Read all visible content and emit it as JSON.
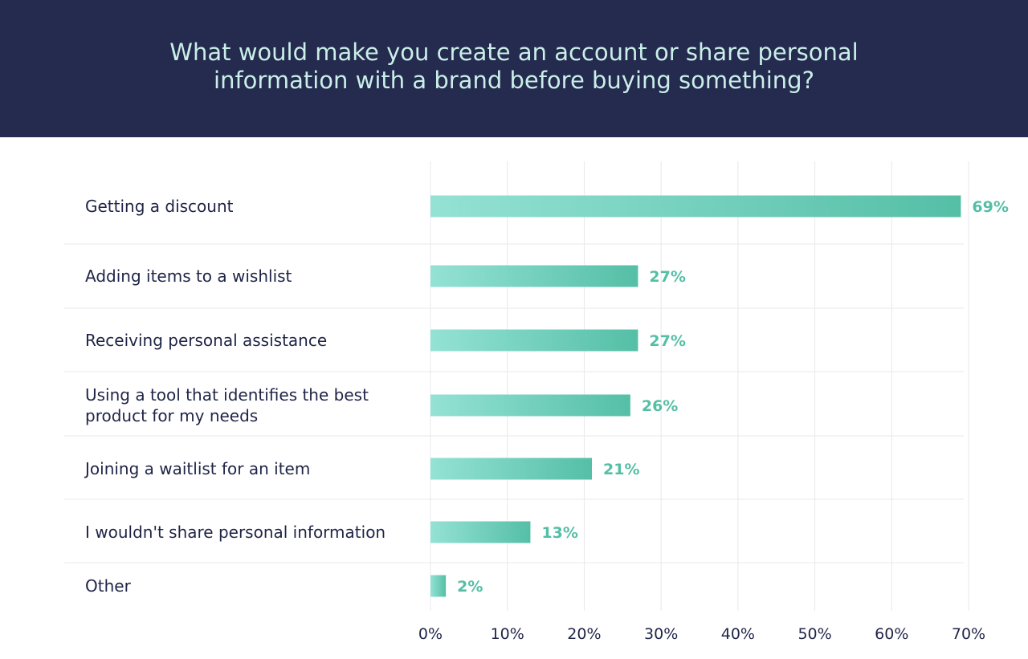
{
  "chart_data": {
    "type": "bar",
    "orientation": "horizontal",
    "title": "What would make you create an account or share personal information with a brand before buying something?",
    "categories": [
      [
        "Getting a discount"
      ],
      [
        "Adding items to a wishlist"
      ],
      [
        "Receiving personal assistance"
      ],
      [
        "Using a tool that identifies the best",
        "product for my needs"
      ],
      [
        "Joining a waitlist for an item"
      ],
      [
        "I wouldn't share personal information"
      ],
      [
        "Other"
      ]
    ],
    "values": [
      69,
      27,
      27,
      26,
      21,
      13,
      2
    ],
    "value_labels": [
      "69%",
      "27%",
      "27%",
      "26%",
      "21%",
      "13%",
      "2%"
    ],
    "xlim": [
      0,
      70
    ],
    "xticks": [
      0,
      10,
      20,
      30,
      40,
      50,
      60,
      70
    ],
    "xtick_labels": [
      "0%",
      "10%",
      "20%",
      "30%",
      "40%",
      "50%",
      "60%",
      "70%"
    ],
    "xlabel": "",
    "ylabel": "",
    "grid": true,
    "legend": "none",
    "colors": {
      "bar_start": "#94e2d4",
      "bar_end": "#55bfa6",
      "value_label": "#55bfa6",
      "header_bg": "#252a4f",
      "title_text": "#c9efe8",
      "text": "#1f2447",
      "grid": "#e8e8ec"
    }
  }
}
